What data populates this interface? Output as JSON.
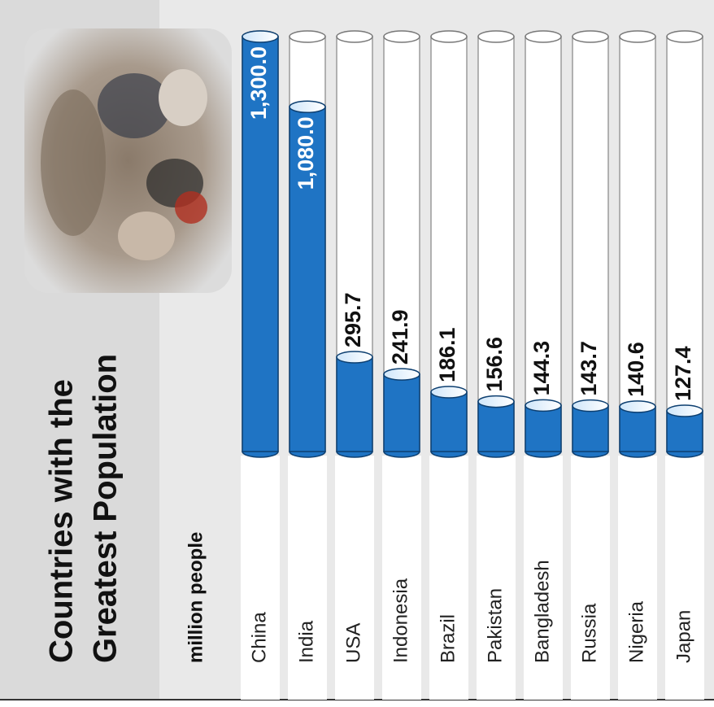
{
  "chart_data": {
    "type": "bar",
    "title": "Countries with the Greatest Population",
    "title_lines": [
      "Countries with the",
      "Greatest Population"
    ],
    "subtitle": "million people",
    "categories": [
      "China",
      "India",
      "USA",
      "Indonesia",
      "Brazil",
      "Pakistan",
      "Bangladesh",
      "Russia",
      "Nigeria",
      "Japan"
    ],
    "values": [
      1300.0,
      1080.0,
      295.7,
      241.9,
      186.1,
      156.6,
      144.3,
      143.7,
      140.6,
      127.4
    ],
    "value_labels": [
      "1,300.0",
      "1,080.0",
      "295.7",
      "241.9",
      "186.1",
      "156.6",
      "144.3",
      "143.7",
      "140.6",
      "127.4"
    ],
    "color": "#1f74c4"
  }
}
